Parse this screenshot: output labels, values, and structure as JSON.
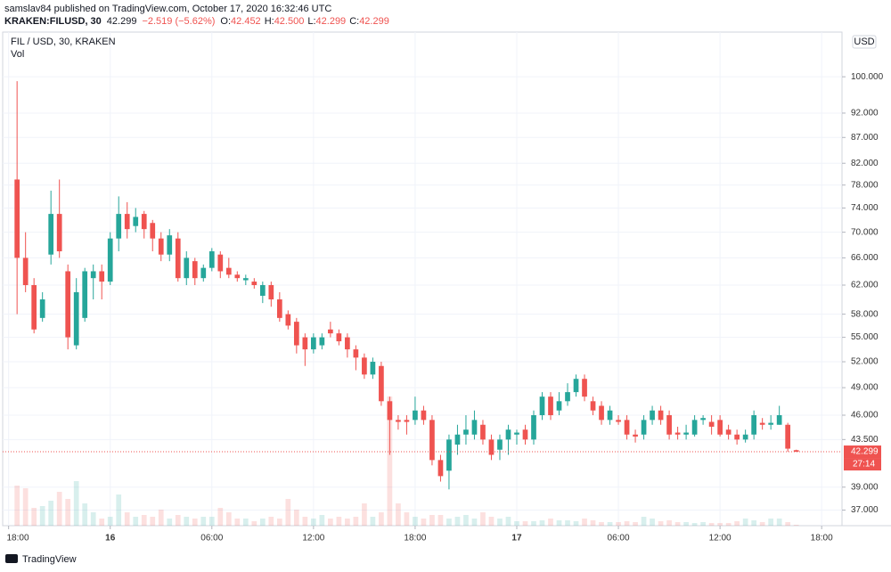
{
  "header": {
    "publisher": "samslav84 published on TradingView.com, October 17, 2020 16:32:46 UTC",
    "symbol": "KRAKEN:FILUSD, 30",
    "price": "42.299",
    "change": "−2.519 (−5.62%)",
    "ohlc": [
      {
        "key": "O:",
        "value": "42.452"
      },
      {
        "key": "H:",
        "value": "42.500"
      },
      {
        "key": "L:",
        "value": "42.299"
      },
      {
        "key": "C:",
        "value": "42.299"
      }
    ]
  },
  "chart_data": {
    "type": "candlestick",
    "title": "FIL / USD, 30, KRAKEN",
    "volume_label": "Vol",
    "currency": "USD",
    "log_scale": true,
    "grid": true,
    "up_color": "#26a69a",
    "down_color": "#ef5350",
    "x": [
      1,
      2,
      3,
      4,
      5,
      6,
      7,
      8,
      9,
      10,
      11,
      12,
      13,
      14,
      15,
      16,
      17,
      18,
      19,
      20,
      21,
      22,
      23,
      24,
      25,
      26,
      27,
      28,
      29,
      30,
      31,
      32,
      33,
      34,
      35,
      36,
      37,
      38,
      39,
      40,
      41,
      42,
      43,
      44,
      45,
      46,
      47,
      48,
      49,
      50,
      51,
      52,
      53,
      54,
      55,
      56,
      57,
      58,
      59,
      60,
      61,
      62,
      63,
      64,
      65,
      66,
      67,
      68,
      69,
      70,
      71,
      72,
      73,
      74,
      75,
      76,
      77,
      78,
      79,
      80,
      81,
      82,
      83,
      84,
      85,
      86,
      87,
      88,
      89,
      90,
      91,
      92,
      93
    ],
    "open": [
      79,
      66,
      62,
      57.5,
      66.5,
      73,
      64,
      54,
      57.5,
      63,
      64,
      62.5,
      69,
      73,
      71,
      73,
      71.5,
      69,
      66.5,
      69,
      63,
      65.5,
      63,
      64.5,
      66.5,
      64.5,
      63.5,
      62.7,
      62.5,
      60.5,
      62,
      60,
      58,
      57,
      55,
      53.5,
      54,
      56,
      55.5,
      55,
      53.5,
      52.5,
      50.5,
      51.5,
      47.5,
      45.5,
      45.5,
      45.5,
      46.5,
      45.5,
      41.5,
      40.5,
      43,
      44,
      44,
      45,
      43.5,
      42.5,
      43.5,
      44,
      44.5,
      43.5,
      46,
      48,
      46.5,
      47.5,
      48.5,
      50,
      47.5,
      47,
      45.5,
      45.5,
      45.5,
      44,
      44,
      45.5,
      46.5,
      46,
      44.2,
      44,
      44,
      45.5,
      45.3,
      45.5,
      44.5,
      44,
      43.5,
      44,
      45.2,
      45,
      45,
      45,
      42.452
    ],
    "high": [
      99,
      70,
      63,
      61,
      77,
      79,
      65,
      63,
      64.5,
      65,
      65,
      70,
      76,
      75,
      74,
      73.5,
      72,
      70,
      70.5,
      70,
      67,
      66,
      65,
      67.5,
      67,
      66,
      64,
      63.5,
      63,
      62.5,
      62.5,
      61,
      58.5,
      57.5,
      55.5,
      55.5,
      55.5,
      57,
      56,
      55.5,
      54,
      53,
      52.5,
      52,
      48,
      46,
      46,
      48,
      47,
      46,
      42,
      44,
      45,
      46,
      46.5,
      45.5,
      44,
      44,
      45,
      44.5,
      45,
      46.5,
      48.5,
      48.5,
      48.5,
      49.5,
      50.5,
      50.5,
      48,
      47.5,
      47,
      46,
      46,
      44.5,
      46,
      47,
      47,
      46.5,
      44.8,
      45,
      46,
      46,
      46,
      46,
      45,
      44.5,
      44.5,
      46.5,
      45.7,
      46,
      47,
      45.2,
      42.5
    ],
    "low": [
      58,
      61,
      55.5,
      57,
      65,
      66,
      53.5,
      53.5,
      57,
      60,
      60,
      62,
      67,
      69,
      70,
      69,
      67,
      65.5,
      65.5,
      62.5,
      62,
      62,
      62.5,
      64,
      63,
      63,
      62.5,
      62,
      61.5,
      59.5,
      59,
      57,
      56,
      53,
      51.5,
      53,
      53.5,
      55,
      54,
      52.5,
      51,
      50,
      50,
      47,
      42,
      44.5,
      44,
      45,
      45,
      41,
      39.5,
      38.8,
      42,
      43,
      43.5,
      43,
      41.5,
      41.5,
      42,
      43,
      43,
      43,
      45.5,
      45.5,
      46,
      47,
      48,
      47.5,
      46,
      45,
      45,
      45,
      43.5,
      43.2,
      43.5,
      45,
      45,
      43.5,
      43.5,
      43.5,
      43.8,
      45,
      44,
      43.8,
      43.5,
      43,
      43.2,
      43.5,
      44.5,
      44.5,
      45,
      42.3,
      42.299
    ],
    "close": [
      66,
      62,
      56,
      60,
      73,
      67,
      55,
      61,
      64,
      64,
      62.5,
      69,
      73,
      70.5,
      72.5,
      70.5,
      69,
      66.5,
      69.5,
      63,
      66,
      63,
      64.5,
      67,
      64,
      63.5,
      63,
      63,
      62,
      62,
      60,
      57.5,
      56.5,
      54,
      53.5,
      55,
      55,
      55.5,
      54.5,
      53.5,
      52.5,
      50.5,
      52,
      47.5,
      45.5,
      45.3,
      45.3,
      46.5,
      45.5,
      41.5,
      40,
      43.5,
      44,
      44.5,
      45.5,
      43.5,
      42,
      43.5,
      44.5,
      44.2,
      43.5,
      46,
      48,
      46,
      47.5,
      48.5,
      50,
      48,
      46.5,
      45.5,
      46.5,
      45.3,
      44,
      43.8,
      45.5,
      46.5,
      45.5,
      44,
      44,
      44.2,
      45.5,
      45.7,
      44.8,
      44,
      44,
      43.5,
      44,
      46,
      45,
      45.2,
      46,
      42.6,
      42.299
    ],
    "volume": [
      45,
      42,
      20,
      22,
      28,
      38,
      30,
      50,
      25,
      15,
      8,
      10,
      35,
      15,
      10,
      12,
      10,
      18,
      8,
      12,
      10,
      8,
      10,
      10,
      20,
      15,
      8,
      8,
      5,
      8,
      10,
      8,
      30,
      18,
      10,
      8,
      12,
      8,
      10,
      8,
      10,
      25,
      10,
      15,
      145,
      25,
      15,
      10,
      8,
      12,
      12,
      8,
      10,
      12,
      8,
      15,
      10,
      8,
      10,
      5,
      5,
      5,
      6,
      8,
      6,
      6,
      5,
      8,
      6,
      4,
      4,
      4,
      5,
      4,
      10,
      8,
      5,
      6,
      4,
      4,
      3,
      4,
      3,
      3,
      3,
      5,
      8,
      6,
      4,
      8,
      8,
      4,
      1
    ],
    "xlim": [
      -0.7,
      98.4
    ],
    "xticks": [
      {
        "value": 0,
        "label": "18:00"
      },
      {
        "value": 12,
        "label": "16"
      },
      {
        "value": 24,
        "label": "06:00"
      },
      {
        "value": 36,
        "label": "12:00"
      },
      {
        "value": 48,
        "label": "18:00"
      },
      {
        "value": 60,
        "label": "17"
      },
      {
        "value": 72,
        "label": "06:00"
      },
      {
        "value": 84,
        "label": "12:00"
      },
      {
        "value": 96,
        "label": "18:00"
      }
    ],
    "ylim": [
      35.7,
      110.8
    ],
    "yticks": [
      {
        "value": 37,
        "label": "37.000"
      },
      {
        "value": 39,
        "label": "39.000"
      },
      {
        "value": 43.5,
        "label": "43.500"
      },
      {
        "value": 46,
        "label": "46.000"
      },
      {
        "value": 49,
        "label": "49.000"
      },
      {
        "value": 52,
        "label": "52.000"
      },
      {
        "value": 55,
        "label": "55.000"
      },
      {
        "value": 58,
        "label": "58.000"
      },
      {
        "value": 62,
        "label": "62.000"
      },
      {
        "value": 66,
        "label": "66.000"
      },
      {
        "value": 70,
        "label": "70.000"
      },
      {
        "value": 74,
        "label": "74.000"
      },
      {
        "value": 78,
        "label": "78.000"
      },
      {
        "value": 82,
        "label": "82.000"
      },
      {
        "value": 87,
        "label": "87.000"
      },
      {
        "value": 92,
        "label": "92.000"
      },
      {
        "value": 100,
        "label": "100.000"
      }
    ],
    "last_price": {
      "value": 42.299,
      "label": "42.299"
    },
    "countdown": "27:14"
  },
  "footer": {
    "brand": "TradingView"
  }
}
